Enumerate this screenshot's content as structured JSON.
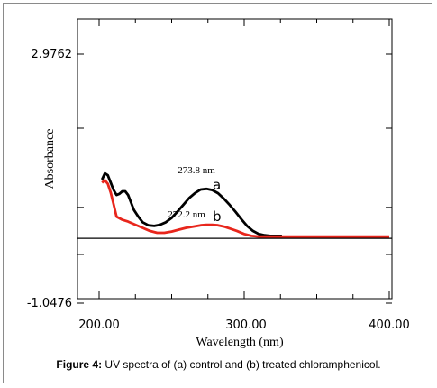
{
  "caption": {
    "label": "Figure 4:",
    "text": "UV spectra of (a) control and (b) treated chloramphenicol."
  },
  "chart_data": {
    "type": "line",
    "xlabel": "Wavelength (nm)",
    "ylabel": "Absorbance",
    "xlim": [
      200,
      400
    ],
    "ylim": [
      -1.0476,
      2.9762
    ],
    "x_tick_labels": [
      {
        "value": 200,
        "label": "200.00"
      },
      {
        "value": 300,
        "label": "300.00"
      },
      {
        "value": 400,
        "label": "400.00"
      }
    ],
    "y_tick_labels": [
      {
        "value": 2.9762,
        "label": "2.9762"
      },
      {
        "value": -1.0476,
        "label": "-1.0476"
      }
    ],
    "baseline": 0,
    "colors": {
      "a": "#000000",
      "b": "#e8261c",
      "baseline": "#000000",
      "axis": "#000000"
    },
    "series": [
      {
        "name": "a",
        "color": "#000000",
        "x": [
          202,
          204,
          206,
          208,
          210,
          212,
          214,
          216,
          218,
          220,
          222,
          224,
          227,
          230,
          234,
          238,
          242,
          246,
          250,
          254,
          258,
          262,
          266,
          270,
          274,
          278,
          282,
          286,
          290,
          294,
          298,
          302,
          306,
          310,
          314,
          318,
          322,
          326
        ],
        "y": [
          0.95,
          1.05,
          1.02,
          0.9,
          0.78,
          0.7,
          0.72,
          0.76,
          0.76,
          0.7,
          0.58,
          0.46,
          0.35,
          0.26,
          0.21,
          0.2,
          0.22,
          0.26,
          0.33,
          0.43,
          0.54,
          0.65,
          0.73,
          0.79,
          0.8,
          0.78,
          0.73,
          0.64,
          0.54,
          0.43,
          0.31,
          0.2,
          0.12,
          0.07,
          0.05,
          0.04,
          0.04,
          0.04
        ]
      },
      {
        "name": "b",
        "color": "#e8261c",
        "x": [
          202,
          204,
          206,
          208,
          210,
          212,
          216,
          220,
          225,
          230,
          235,
          240,
          245,
          250,
          255,
          260,
          265,
          270,
          274,
          278,
          282,
          286,
          290,
          295,
          300,
          305,
          310,
          320,
          330,
          340,
          360,
          380,
          400
        ],
        "y": [
          0.9,
          0.94,
          0.88,
          0.74,
          0.55,
          0.35,
          0.3,
          0.27,
          0.22,
          0.17,
          0.12,
          0.09,
          0.09,
          0.11,
          0.14,
          0.17,
          0.19,
          0.21,
          0.22,
          0.22,
          0.21,
          0.19,
          0.16,
          0.12,
          0.07,
          0.04,
          0.03,
          0.03,
          0.03,
          0.03,
          0.03,
          0.03,
          0.03
        ]
      }
    ],
    "annotations": {
      "peak_a": "273.8 nm",
      "peak_b": "272.2 nm",
      "series_label_a": "a",
      "series_label_b": "b"
    }
  }
}
